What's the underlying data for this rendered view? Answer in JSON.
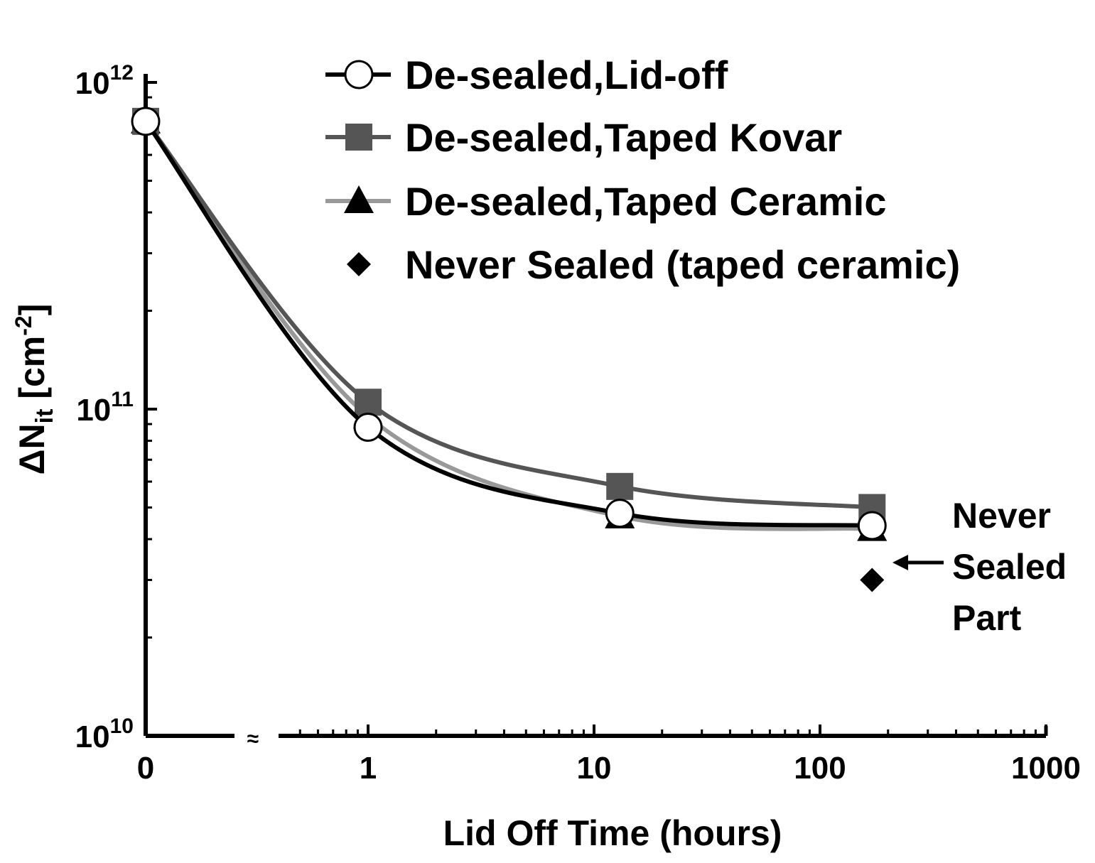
{
  "chart_data": {
    "type": "line",
    "xlabel": "Lid Off Time (hours)",
    "ylabel": "ΔN",
    "ylabel_sub": "it",
    "ylabel_unit_open": " [cm",
    "ylabel_unit_exp": "-2",
    "ylabel_unit_close": "]",
    "x_axis_scale": "log with broken axis near 0",
    "y_axis_scale": "log",
    "x_ticks": [
      {
        "value": 0,
        "label": "0"
      },
      {
        "value": 1,
        "label": "1"
      },
      {
        "value": 10,
        "label": "10"
      },
      {
        "value": 100,
        "label": "100"
      },
      {
        "value": 1000,
        "label": "1000"
      }
    ],
    "y_ticks": [
      {
        "value": 10000000000.0,
        "base": "10",
        "exp": "10"
      },
      {
        "value": 100000000000.0,
        "base": "10",
        "exp": "11"
      },
      {
        "value": 1000000000000.0,
        "base": "10",
        "exp": "12"
      }
    ],
    "ylim": [
      10000000000.0,
      1000000000000.0
    ],
    "xlim": [
      0,
      1000
    ],
    "axis_break_marker": "≈",
    "grid": false,
    "legend_position": "top-right",
    "series": [
      {
        "name": "De-sealed,Lid-off",
        "marker": "circle-open",
        "color": "#000000",
        "x": [
          0,
          1,
          13,
          170
        ],
        "y": [
          760000000000.0,
          88000000000.0,
          48000000000.0,
          44000000000.0
        ]
      },
      {
        "name": "De-sealed,Taped Kovar",
        "marker": "square",
        "color": "#555555",
        "x": [
          0,
          1,
          13,
          170
        ],
        "y": [
          760000000000.0,
          105000000000.0,
          58000000000.0,
          50000000000.0
        ]
      },
      {
        "name": "De-sealed,Taped Ceramic",
        "marker": "triangle",
        "color": "#999999",
        "x": [
          0,
          1,
          13,
          170
        ],
        "y": [
          760000000000.0,
          95000000000.0,
          47000000000.0,
          43000000000.0
        ]
      },
      {
        "name": "Never Sealed (taped ceramic)",
        "marker": "diamond",
        "color": "#000000",
        "x": [
          170
        ],
        "y": [
          30000000000.0
        ]
      }
    ],
    "annotation": {
      "lines": [
        "Never",
        "Sealed",
        "Part"
      ],
      "points_to_series": "Never Sealed (taped ceramic)"
    }
  }
}
